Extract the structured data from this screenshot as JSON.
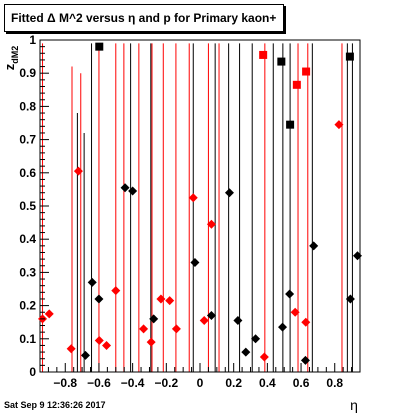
{
  "title": "Fitted Δ M^2 versus η and p for Primary kaon+",
  "footer_timestamp": "Sat Sep  9 12:36:26 2017",
  "chart_data": {
    "type": "scatter",
    "title": "Fitted Δ M^2 versus η and p for Primary kaon+",
    "xlabel": "η",
    "ylabel": "z_dM2",
    "xlim": [
      -0.95,
      0.95
    ],
    "ylim": [
      0,
      1
    ],
    "x_ticks": [
      -0.8,
      -0.6,
      -0.4,
      -0.2,
      0,
      0.2,
      0.4,
      0.6,
      0.8
    ],
    "x_tick_labels": [
      "−0.8",
      "−0.6",
      "−0.4",
      "−0.2",
      "0",
      "0.2",
      "0.4",
      "0.6",
      "0.8"
    ],
    "y_ticks": [
      0,
      0.1,
      0.2,
      0.3,
      0.4,
      0.5,
      0.6,
      0.7,
      0.8,
      0.9,
      1
    ],
    "y_tick_labels": [
      "0",
      "0.1",
      "0.2",
      "0.3",
      "0.4",
      "0.5",
      "0.6",
      "0.7",
      "0.8",
      "0.9",
      "1"
    ],
    "colors": {
      "red": "#ff0000",
      "black": "#000000"
    },
    "vlines_red": [
      {
        "x": -0.935,
        "top": 0.99
      },
      {
        "x": -0.76,
        "top": 0.92
      },
      {
        "x": -0.708,
        "top": 0.9
      },
      {
        "x": -0.6,
        "top": 0.99
      },
      {
        "x": -0.5,
        "top": 0.99
      },
      {
        "x": -0.452,
        "top": 0.99
      },
      {
        "x": -0.363,
        "top": 0.99
      },
      {
        "x": -0.285,
        "top": 0.99
      },
      {
        "x": -0.218,
        "top": 0.99
      },
      {
        "x": -0.143,
        "top": 0.99
      },
      {
        "x": -0.064,
        "top": 0.99
      },
      {
        "x": 0.05,
        "top": 0.99
      },
      {
        "x": 0.113,
        "top": 0.99
      },
      {
        "x": 0.385,
        "top": 0.99
      },
      {
        "x": 0.582,
        "top": 0.99
      },
      {
        "x": 0.64,
        "top": 0.99
      },
      {
        "x": 0.843,
        "top": 0.99
      }
    ],
    "vlines_black": [
      {
        "x": -0.728,
        "top": 0.78
      },
      {
        "x": -0.688,
        "top": 0.72
      },
      {
        "x": -0.644,
        "top": 0.99
      },
      {
        "x": -0.412,
        "top": 0.99
      },
      {
        "x": -0.292,
        "top": 0.99
      },
      {
        "x": -0.04,
        "top": 0.99
      },
      {
        "x": 0.09,
        "top": 0.99
      },
      {
        "x": 0.17,
        "top": 0.99
      },
      {
        "x": 0.235,
        "top": 0.99
      },
      {
        "x": 0.31,
        "top": 0.99
      },
      {
        "x": 0.435,
        "top": 0.99
      },
      {
        "x": 0.492,
        "top": 0.99
      },
      {
        "x": 0.535,
        "top": 0.99
      },
      {
        "x": 0.667,
        "top": 0.99
      },
      {
        "x": 0.875,
        "top": 0.99
      },
      {
        "x": 0.905,
        "top": 0.99
      }
    ],
    "series": [
      {
        "color": "red",
        "diamonds": [
          [
            -0.935,
            0.16
          ],
          [
            -0.895,
            0.175
          ],
          [
            -0.722,
            0.605
          ],
          [
            -0.765,
            0.07
          ],
          [
            -0.598,
            0.095
          ],
          [
            -0.555,
            0.08
          ],
          [
            -0.5,
            0.245
          ],
          [
            -0.335,
            0.13
          ],
          [
            -0.29,
            0.09
          ],
          [
            -0.232,
            0.22
          ],
          [
            -0.18,
            0.215
          ],
          [
            -0.14,
            0.13
          ],
          [
            -0.04,
            0.525
          ],
          [
            0.025,
            0.155
          ],
          [
            0.068,
            0.445
          ],
          [
            0.382,
            0.045
          ],
          [
            0.565,
            0.18
          ],
          [
            0.628,
            0.15
          ],
          [
            0.825,
            0.745
          ]
        ],
        "squares": [
          [
            0.375,
            0.955
          ],
          [
            0.575,
            0.865
          ],
          [
            0.63,
            0.905
          ]
        ]
      },
      {
        "color": "black",
        "diamonds": [
          [
            -0.68,
            0.05
          ],
          [
            -0.64,
            0.27
          ],
          [
            -0.6,
            0.22
          ],
          [
            -0.445,
            0.555
          ],
          [
            -0.4,
            0.545
          ],
          [
            -0.275,
            0.16
          ],
          [
            -0.03,
            0.33
          ],
          [
            0.068,
            0.17
          ],
          [
            0.175,
            0.54
          ],
          [
            0.225,
            0.155
          ],
          [
            0.272,
            0.06
          ],
          [
            0.33,
            0.1
          ],
          [
            0.49,
            0.135
          ],
          [
            0.532,
            0.235
          ],
          [
            0.626,
            0.035
          ],
          [
            0.675,
            0.38
          ],
          [
            0.893,
            0.22
          ],
          [
            0.935,
            0.35
          ]
        ],
        "squares": [
          [
            -0.598,
            0.98
          ],
          [
            0.483,
            0.935
          ],
          [
            0.535,
            0.745
          ],
          [
            0.89,
            0.95
          ]
        ]
      }
    ]
  }
}
